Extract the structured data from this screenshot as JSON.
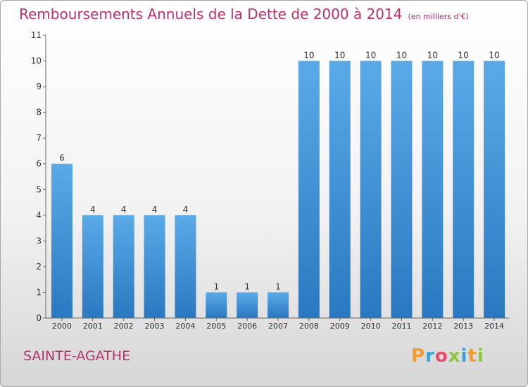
{
  "chart_data": {
    "type": "bar",
    "title": "Remboursements Annuels de la Dette de 2000 à 2014",
    "subtitle": "(en milliers d'€)",
    "categories": [
      "2000",
      "2001",
      "2002",
      "2003",
      "2004",
      "2005",
      "2006",
      "2007",
      "2008",
      "2009",
      "2010",
      "2011",
      "2012",
      "2013",
      "2014"
    ],
    "values": [
      6,
      4,
      4,
      4,
      4,
      1,
      1,
      1,
      10,
      10,
      10,
      10,
      10,
      10,
      10
    ],
    "ylim": [
      0,
      11
    ],
    "yticks": [
      0,
      1,
      2,
      3,
      4,
      5,
      6,
      7,
      8,
      9,
      10,
      11
    ],
    "grid": false,
    "bar_color": "#4f9fe0"
  },
  "commune": "SAINTE-AGATHE",
  "logo": "Proxiti",
  "logo_colors": [
    "#f29a2e",
    "#3aa0d8",
    "#e84a6b",
    "#8cc63f",
    "#3aa0d8",
    "#f29a2e",
    "#8cc63f"
  ]
}
